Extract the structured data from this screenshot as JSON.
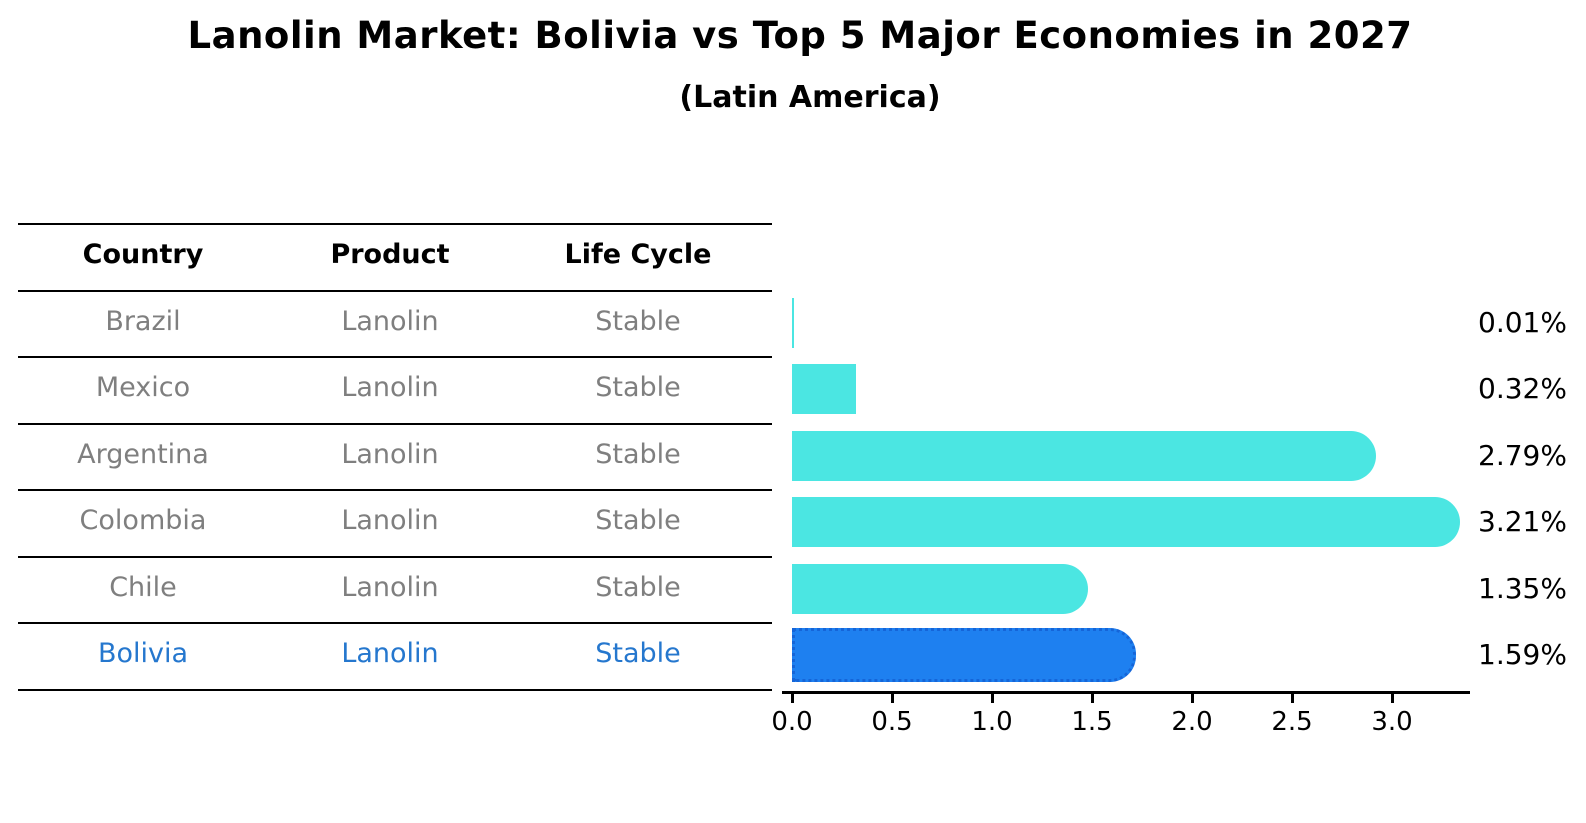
{
  "title": "Lanolin Market: Bolivia vs Top 5 Major Economies in 2027",
  "subtitle": "(Latin America)",
  "table": {
    "headers": [
      "Country",
      "Product",
      "Life Cycle"
    ],
    "rows": [
      {
        "country": "Brazil",
        "product": "Lanolin",
        "life_cycle": "Stable",
        "highlight": false
      },
      {
        "country": "Mexico",
        "product": "Lanolin",
        "life_cycle": "Stable",
        "highlight": false
      },
      {
        "country": "Argentina",
        "product": "Lanolin",
        "life_cycle": "Stable",
        "highlight": false
      },
      {
        "country": "Colombia",
        "product": "Lanolin",
        "life_cycle": "Stable",
        "highlight": false
      },
      {
        "country": "Chile",
        "product": "Lanolin",
        "life_cycle": "Stable",
        "highlight": false
      },
      {
        "country": "Bolivia",
        "product": "Lanolin",
        "life_cycle": "Stable",
        "highlight": true
      }
    ]
  },
  "chart_data": {
    "type": "bar",
    "orientation": "horizontal",
    "title": "Lanolin Market: Bolivia vs Top 5 Major Economies in 2027",
    "subtitle": "(Latin America)",
    "categories": [
      "Brazil",
      "Mexico",
      "Argentina",
      "Colombia",
      "Chile",
      "Bolivia"
    ],
    "values": [
      0.01,
      0.32,
      2.79,
      3.21,
      1.35,
      1.59
    ],
    "value_labels": [
      "0.01%",
      "0.32%",
      "2.79%",
      "3.21%",
      "1.35%",
      "1.59%"
    ],
    "x_tick_labels": [
      "0.0",
      "0.5",
      "1.0",
      "1.5",
      "2.0",
      "2.5",
      "3.0"
    ],
    "x_tick_values": [
      0.0,
      0.5,
      1.0,
      1.5,
      2.0,
      2.5,
      3.0
    ],
    "xlim": [
      0,
      3.39
    ],
    "grid": false,
    "legend": "none",
    "bar_color": "#4be6e2",
    "highlight_bar_color": "#1e80f0",
    "highlight_border_color": "#1565d8",
    "highlight_text_color": "#2577ce",
    "highlight_index": 5
  }
}
